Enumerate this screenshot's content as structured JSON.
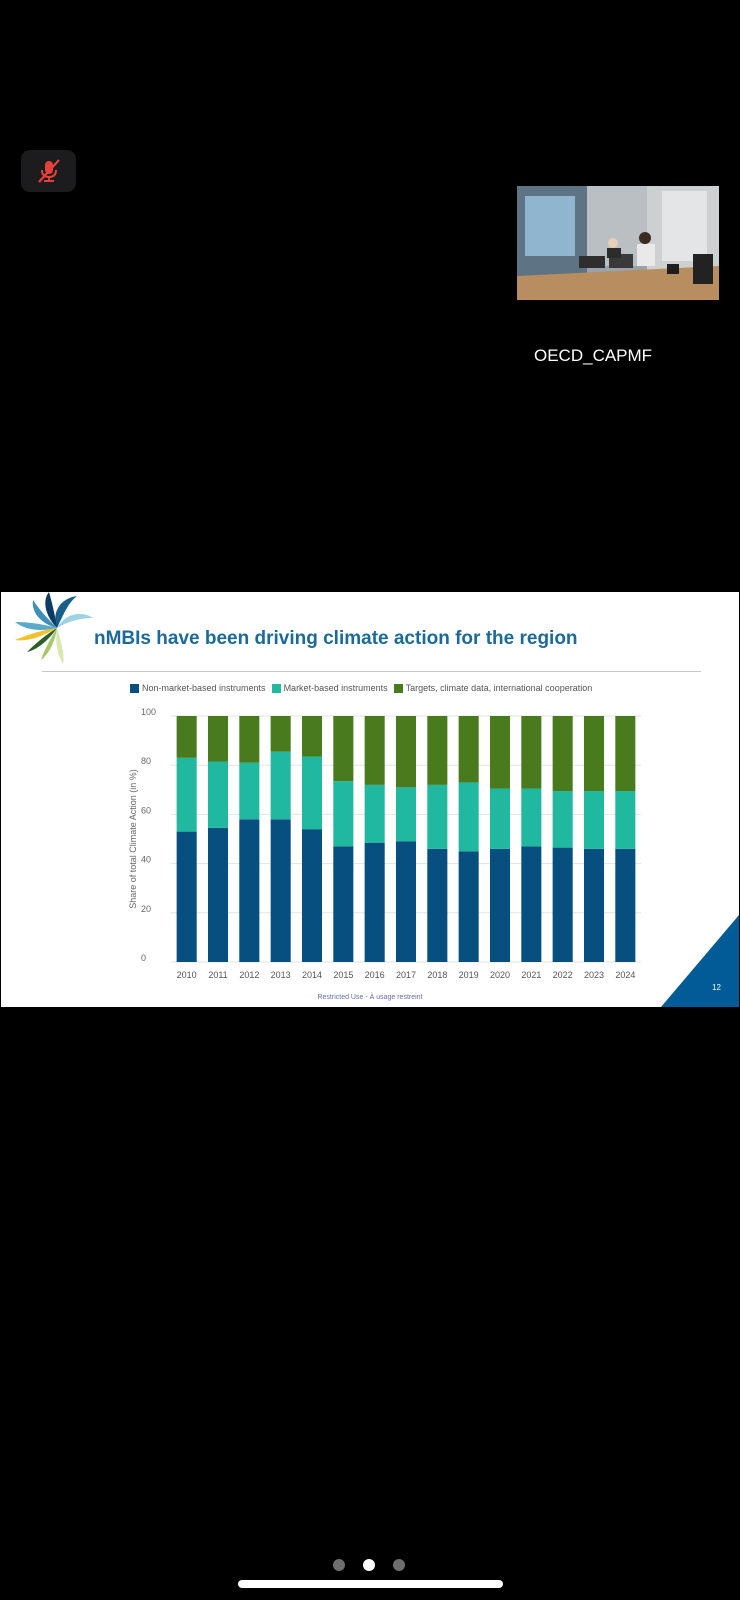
{
  "participant": {
    "name": "OECD_CAPMF"
  },
  "controls": {
    "mute_icon": "microphone-off-icon",
    "mute_color": "#e5413a"
  },
  "slide": {
    "title": "nMBIs have been driving climate action for the region",
    "footer": "Restricted Use - À usage restreint",
    "page_number": "12",
    "accent_color": "#005b96"
  },
  "pager": {
    "pages": 3,
    "active_index": 1
  },
  "chart_data": {
    "type": "bar",
    "stacked": true,
    "categories": [
      "2010",
      "2011",
      "2012",
      "2013",
      "2014",
      "2015",
      "2016",
      "2017",
      "2018",
      "2019",
      "2020",
      "2021",
      "2022",
      "2023",
      "2024"
    ],
    "series": [
      {
        "name": "Non-market-based instruments",
        "color": "#064f7e",
        "values": [
          53,
          54.5,
          58,
          58,
          54,
          47,
          48.5,
          49,
          46,
          45,
          46,
          47,
          46.5,
          46,
          46
        ]
      },
      {
        "name": "Market-based instruments",
        "color": "#21b8a0",
        "values": [
          30,
          27,
          23,
          27.5,
          29.5,
          26.5,
          23.5,
          22,
          26,
          28,
          24.5,
          23.5,
          23,
          23.5,
          23.5
        ]
      },
      {
        "name": "Targets, climate data, international cooperation",
        "color": "#4a7a1e",
        "values": [
          17,
          18.5,
          19,
          14.5,
          16.5,
          26.5,
          28,
          29,
          28,
          27,
          29.5,
          29.5,
          30.5,
          30.5,
          30.5
        ]
      }
    ],
    "ylabel": "Share of total Climate Action (in %)",
    "xlabel": "",
    "ylim": [
      0,
      100
    ],
    "yticks": [
      0,
      20,
      40,
      60,
      80,
      100
    ],
    "grid": true,
    "legend": "top"
  }
}
